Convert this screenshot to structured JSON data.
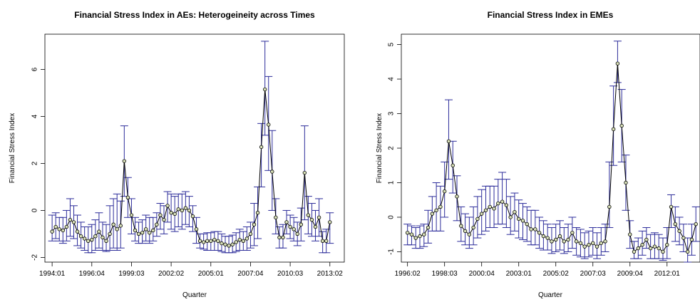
{
  "colors": {
    "bar": "#2c2c9a",
    "line": "#000000",
    "point_fill": "#d8e0b8",
    "box": "#000000"
  },
  "chart_data": [
    {
      "type": "line",
      "title": "Financial Stress Index in AEs: Heterogeineity across Times",
      "xlabel": "Quarter",
      "ylabel": "Financial Stress Index",
      "x_tick_labels": [
        "1994:01",
        "1996:04",
        "1999:03",
        "2002:02",
        "2005:01",
        "2007:04",
        "2010:03",
        "2013:02"
      ],
      "x_tick_index": [
        0,
        11,
        22,
        33,
        44,
        55,
        66,
        77
      ],
      "y_ticks": [
        -2,
        0,
        2,
        4,
        6
      ],
      "ylim": [
        -2.2,
        7.5
      ],
      "xlim": [
        -2,
        81
      ],
      "grid": false,
      "series": [
        {
          "mean": [
            -0.9,
            -0.7,
            -0.8,
            -0.85,
            -0.7,
            -0.4,
            -0.5,
            -0.9,
            -1.1,
            -1.2,
            -1.3,
            -1.25,
            -1.1,
            -0.9,
            -1.15,
            -1.3,
            -1.0,
            -0.6,
            -0.8,
            -0.65,
            2.1,
            0.55,
            -0.2,
            -0.85,
            -1.0,
            -0.95,
            -0.8,
            -0.95,
            -0.85,
            -0.6,
            -0.2,
            -0.4,
            0.2,
            -0.1,
            -0.15,
            0.05,
            0.0,
            0.1,
            0.0,
            -0.25,
            -0.8,
            -1.3,
            -1.35,
            -1.3,
            -1.3,
            -1.25,
            -1.3,
            -1.4,
            -1.45,
            -1.5,
            -1.45,
            -1.35,
            -1.25,
            -1.3,
            -1.2,
            -1.0,
            -0.6,
            -0.1,
            2.7,
            5.15,
            3.65,
            1.65,
            -0.3,
            -1.15,
            -1.15,
            -0.5,
            -0.7,
            -0.8,
            -1.0,
            -0.6,
            1.6,
            -0.2,
            -0.4,
            -0.7,
            -0.3,
            -1.3,
            -1.3,
            -0.5
          ],
          "lower": [
            -1.3,
            -1.2,
            -1.3,
            -1.4,
            -1.3,
            -1.1,
            -1.2,
            -1.5,
            -1.6,
            -1.7,
            -1.8,
            -1.8,
            -1.7,
            -1.6,
            -1.7,
            -1.75,
            -1.7,
            -1.6,
            -1.7,
            -1.6,
            0.6,
            -0.3,
            -1.0,
            -1.3,
            -1.4,
            -1.4,
            -1.3,
            -1.4,
            -1.3,
            -1.1,
            -0.8,
            -1.0,
            -0.5,
            -0.8,
            -0.9,
            -0.7,
            -0.8,
            -0.6,
            -0.7,
            -0.9,
            -1.4,
            -1.6,
            -1.65,
            -1.7,
            -1.7,
            -1.7,
            -1.7,
            -1.75,
            -1.8,
            -1.8,
            -1.8,
            -1.75,
            -1.7,
            -1.7,
            -1.7,
            -1.6,
            -1.5,
            -1.2,
            1.0,
            3.2,
            1.7,
            0.0,
            -1.0,
            -1.6,
            -1.6,
            -1.0,
            -1.2,
            -1.3,
            -1.5,
            -1.3,
            -0.4,
            -1.0,
            -1.1,
            -1.3,
            -1.1,
            -1.8,
            -1.8,
            -1.4
          ],
          "upper": [
            -0.2,
            -0.1,
            -0.3,
            -0.3,
            0.0,
            0.5,
            0.2,
            -0.2,
            -0.5,
            -0.7,
            -0.7,
            -0.6,
            -0.4,
            -0.1,
            -0.5,
            -0.6,
            0.2,
            0.5,
            0.7,
            0.4,
            3.6,
            1.4,
            0.5,
            -0.3,
            -0.5,
            -0.4,
            -0.2,
            -0.3,
            -0.3,
            -0.1,
            0.3,
            0.2,
            0.8,
            0.7,
            0.6,
            0.7,
            0.7,
            0.8,
            0.6,
            0.2,
            -0.3,
            -1.0,
            -1.0,
            -0.95,
            -0.95,
            -0.9,
            -0.9,
            -1.0,
            -1.1,
            -1.1,
            -1.05,
            -0.95,
            -0.8,
            -0.9,
            -0.7,
            -0.5,
            0.3,
            1.0,
            3.7,
            7.2,
            5.7,
            3.4,
            0.5,
            -0.7,
            -0.6,
            0.0,
            -0.2,
            -0.3,
            -0.5,
            0.1,
            3.6,
            0.6,
            0.3,
            0.0,
            0.5,
            -0.9,
            -0.8,
            -0.1
          ]
        }
      ]
    },
    {
      "type": "line",
      "title": "Financial Stress Index in EMEs",
      "xlabel": "Quarter",
      "ylabel": "Financial Stress Index",
      "x_tick_labels": [
        "1996:02",
        "1998:03",
        "2000:04",
        "2003:01",
        "2005:02",
        "2007:03",
        "2009:04",
        "2012:01"
      ],
      "x_tick_index": [
        0,
        9,
        18,
        27,
        36,
        45,
        54,
        63
      ],
      "y_ticks": [
        -1,
        0,
        1,
        2,
        3,
        4,
        5
      ],
      "ylim": [
        -1.3,
        5.3
      ],
      "xlim": [
        -1.5,
        71
      ],
      "grid": false,
      "series": [
        {
          "mean": [
            -0.45,
            -0.5,
            -0.6,
            -0.55,
            -0.5,
            -0.3,
            0.1,
            0.2,
            0.3,
            0.75,
            2.2,
            1.5,
            0.6,
            -0.25,
            -0.4,
            -0.5,
            -0.3,
            -0.05,
            0.1,
            0.2,
            0.3,
            0.25,
            0.4,
            0.45,
            0.35,
            0.0,
            0.15,
            -0.05,
            -0.1,
            -0.2,
            -0.35,
            -0.35,
            -0.45,
            -0.55,
            -0.6,
            -0.7,
            -0.65,
            -0.55,
            -0.7,
            -0.65,
            -0.45,
            -0.7,
            -0.75,
            -0.85,
            -0.8,
            -0.75,
            -0.85,
            -0.75,
            -0.7,
            0.3,
            2.55,
            4.45,
            2.65,
            1.0,
            -0.5,
            -1.0,
            -0.9,
            -0.8,
            -0.65,
            -0.9,
            -0.85,
            -0.9,
            -1.0,
            -0.8,
            0.3,
            -0.2,
            -0.4,
            -0.6,
            -1.0,
            -0.65,
            -0.2
          ],
          "lower": [
            -0.8,
            -0.8,
            -0.9,
            -0.9,
            -0.85,
            -0.75,
            -0.4,
            -0.4,
            -0.4,
            0.0,
            1.1,
            0.7,
            -0.1,
            -0.7,
            -0.8,
            -0.9,
            -0.8,
            -0.6,
            -0.5,
            -0.4,
            -0.3,
            -0.3,
            -0.2,
            -0.2,
            -0.3,
            -0.5,
            -0.4,
            -0.6,
            -0.65,
            -0.7,
            -0.8,
            -0.8,
            -0.9,
            -0.95,
            -0.95,
            -1.05,
            -1.0,
            -0.95,
            -1.05,
            -1.0,
            -0.9,
            -1.1,
            -1.15,
            -1.2,
            -1.15,
            -1.1,
            -1.2,
            -1.1,
            -1.0,
            -0.3,
            1.5,
            3.9,
            1.6,
            0.2,
            -0.9,
            -1.2,
            -1.2,
            -1.1,
            -0.9,
            -1.2,
            -1.2,
            -1.2,
            -1.25,
            -1.2,
            -0.3,
            -0.7,
            -0.8,
            -1.0,
            -1.3,
            -1.1,
            -0.7
          ],
          "upper": [
            -0.2,
            -0.25,
            -0.3,
            -0.25,
            -0.2,
            0.2,
            0.6,
            1.0,
            0.9,
            1.6,
            3.4,
            2.2,
            1.2,
            0.3,
            0.1,
            0.0,
            0.3,
            0.6,
            0.8,
            0.9,
            0.9,
            0.9,
            1.1,
            1.3,
            1.1,
            0.6,
            0.7,
            0.5,
            0.4,
            0.3,
            0.2,
            0.2,
            0.0,
            -0.1,
            -0.2,
            -0.3,
            -0.2,
            -0.1,
            -0.3,
            -0.2,
            0.0,
            -0.3,
            -0.35,
            -0.45,
            -0.4,
            -0.3,
            -0.45,
            -0.3,
            -0.2,
            1.6,
            3.8,
            5.1,
            3.7,
            1.8,
            -0.1,
            -0.7,
            -0.6,
            -0.4,
            -0.3,
            -0.5,
            -0.45,
            -0.5,
            -0.6,
            -0.3,
            0.65,
            0.3,
            0.0,
            -0.2,
            -0.6,
            -0.2,
            0.3
          ]
        }
      ]
    }
  ]
}
